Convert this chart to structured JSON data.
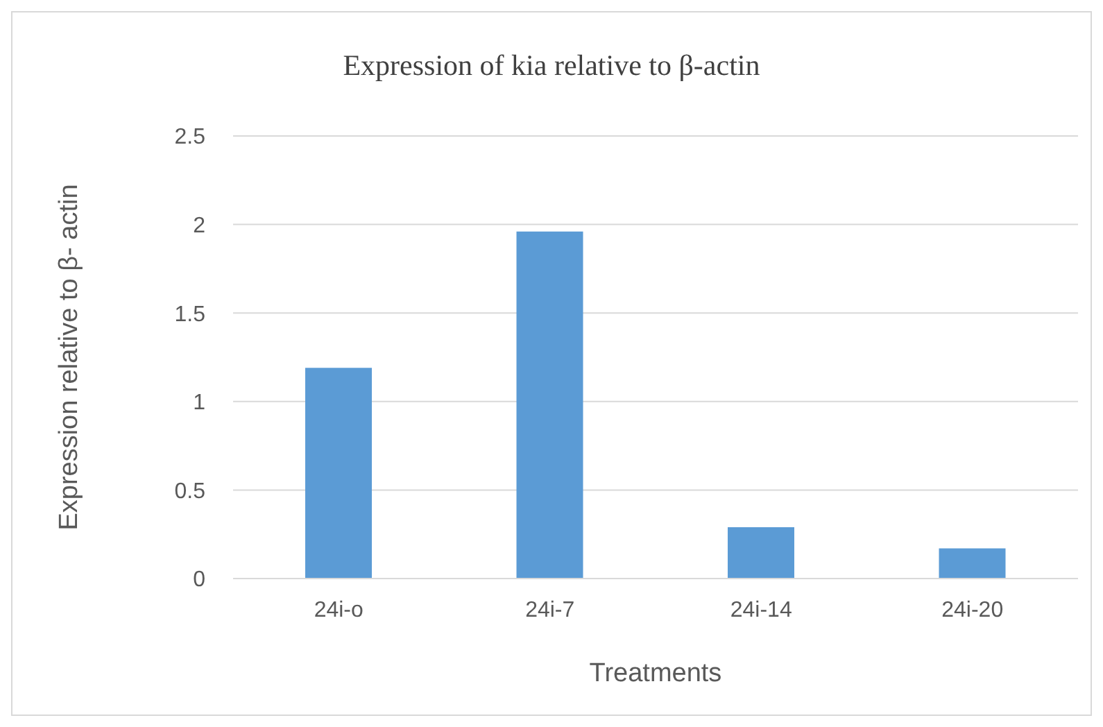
{
  "chart_data": {
    "type": "bar",
    "title": "Expression of kia relative to β-actin",
    "xlabel": "Treatments",
    "ylabel": "Expression relative to β- actin",
    "categories": [
      "24i-o",
      "24i-7",
      "24i-14",
      "24i-20"
    ],
    "values": [
      1.19,
      1.96,
      0.29,
      0.17
    ],
    "color": "#5b9bd5",
    "ylim": [
      0,
      2.5
    ],
    "yticks": [
      0,
      0.5,
      1,
      1.5,
      2,
      2.5
    ],
    "grid": "y"
  }
}
